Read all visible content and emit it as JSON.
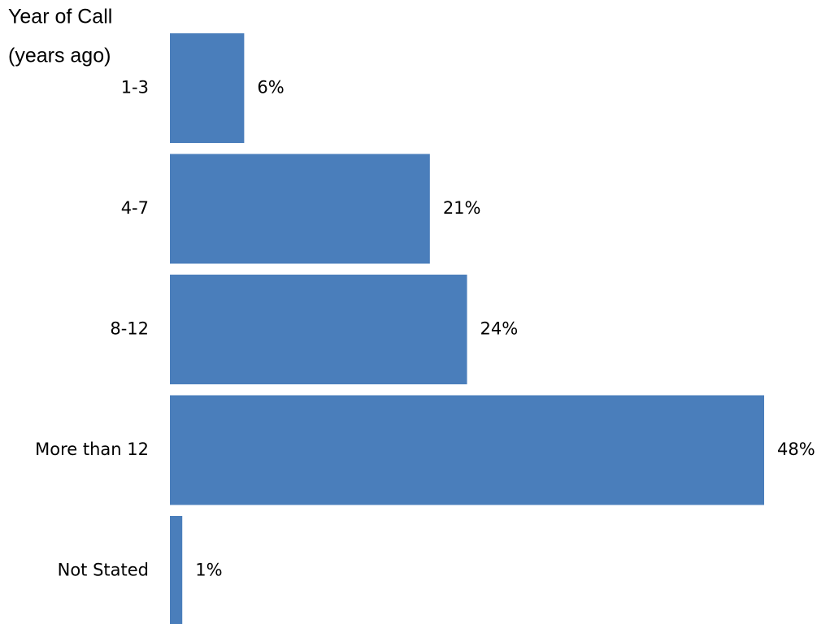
{
  "chart_data": {
    "type": "hbar",
    "title": "Year of Call",
    "subtitle": "(years ago)",
    "categories": [
      "1-3",
      "4-7",
      "8-12",
      "More than 12",
      "Not Stated"
    ],
    "values": [
      6,
      21,
      24,
      48,
      1
    ],
    "value_labels": [
      "6%",
      "21%",
      "24%",
      "48%",
      "1%"
    ],
    "color": "#4a7ebb"
  }
}
